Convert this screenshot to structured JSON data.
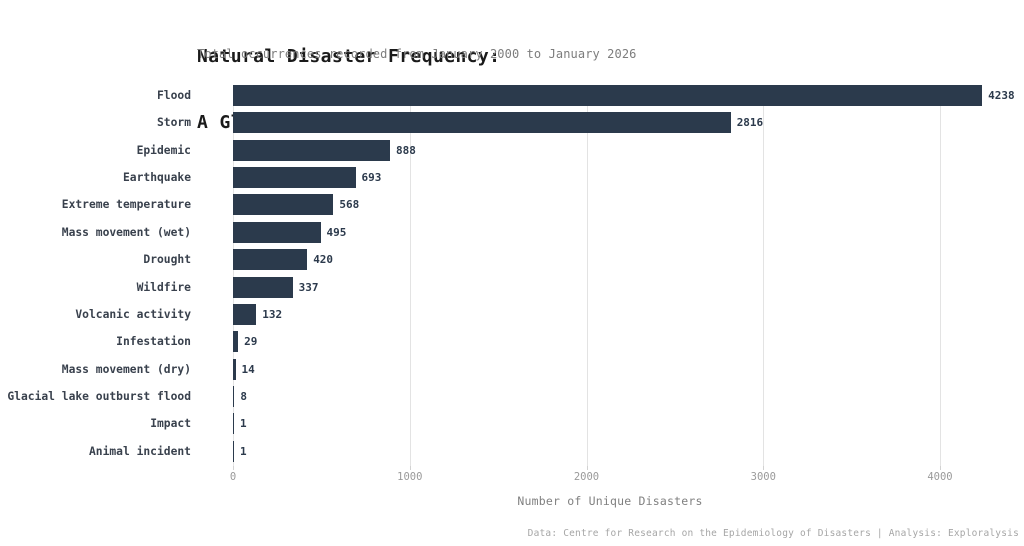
{
  "header": {
    "title_line1": "Natural Disaster Frequency:",
    "title_line2": "A Global Overview by Disaster Type",
    "subtitle": "Total occurrences recorded from January 2000 to January 2026"
  },
  "chart_data": {
    "type": "bar",
    "orientation": "horizontal",
    "title": "Natural Disaster Frequency: A Global Overview by Disaster Type",
    "subtitle": "Total occurrences recorded from January 2000 to January 2026",
    "categories": [
      "Flood",
      "Storm",
      "Epidemic",
      "Earthquake",
      "Extreme temperature",
      "Mass movement (wet)",
      "Drought",
      "Wildfire",
      "Volcanic activity",
      "Infestation",
      "Mass movement (dry)",
      "Glacial lake outburst flood",
      "Impact",
      "Animal incident"
    ],
    "values": [
      4238,
      2816,
      888,
      693,
      568,
      495,
      420,
      337,
      132,
      29,
      14,
      8,
      1,
      1
    ],
    "xlabel": "Number of Unique Disasters",
    "ylabel": "",
    "xticks": [
      0,
      1000,
      2000,
      3000,
      4000
    ],
    "xlim": [
      0,
      4400
    ],
    "grid": true,
    "legend": false,
    "value_labels": true,
    "bar_color": "#2b3a4c"
  },
  "footer": {
    "credit": "Data: Centre for Research on the Epidemiology of Disasters | Analysis: Exploralysis"
  }
}
